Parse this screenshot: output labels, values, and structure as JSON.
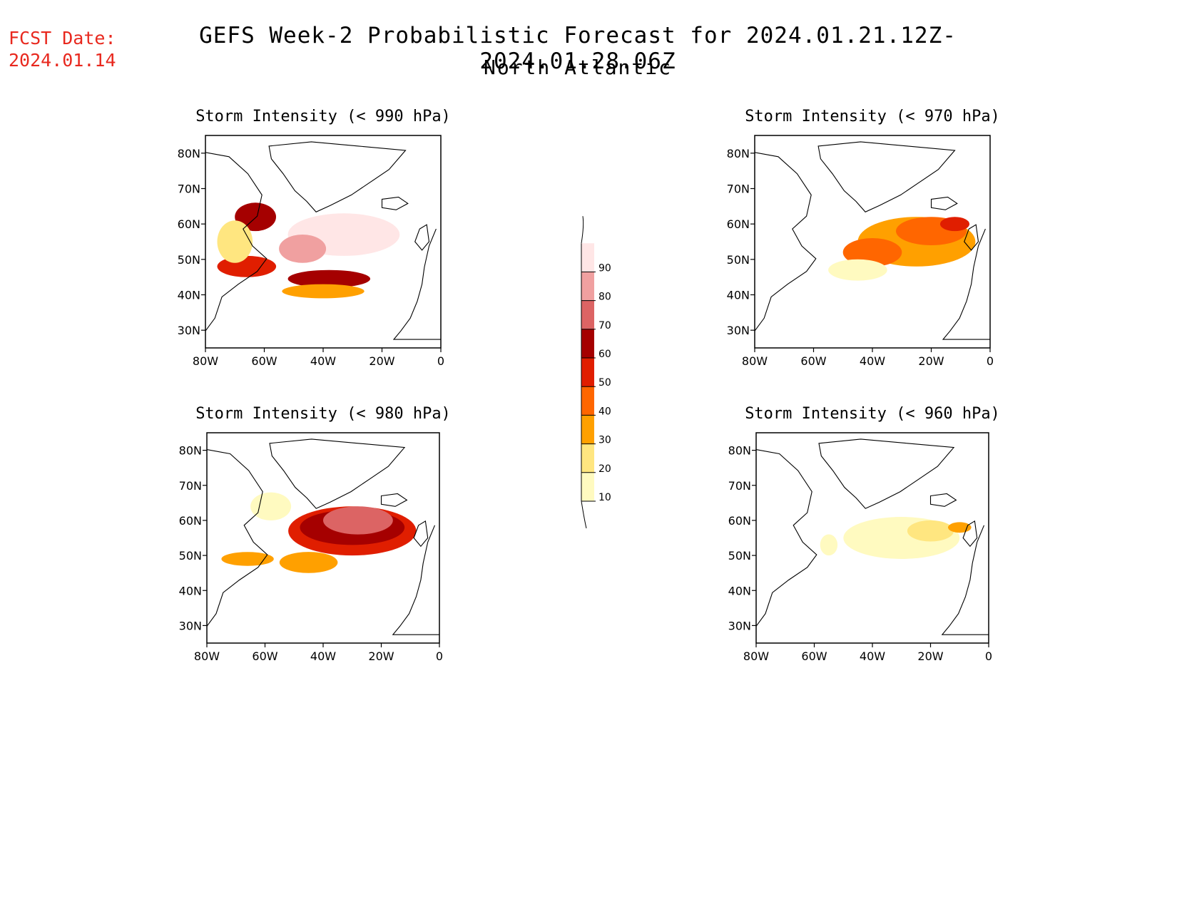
{
  "header": {
    "fcst_label": "FCST Date:",
    "fcst_date": "2024.01.14",
    "title": "GEFS Week-2 Probabilistic Forecast for 2024.01.21.12Z-2024.01.28.06Z",
    "subtitle": "North Atlantic"
  },
  "axes": {
    "lat_ticks": [
      "80N",
      "70N",
      "60N",
      "50N",
      "40N",
      "30N"
    ],
    "lon_ticks": [
      "80W",
      "60W",
      "40W",
      "20W",
      "0"
    ]
  },
  "colorbar": {
    "levels": [
      "10",
      "20",
      "30",
      "40",
      "50",
      "60",
      "70",
      "80",
      "90"
    ],
    "colors": [
      "#fffac0",
      "#ffe680",
      "#ffa000",
      "#ff6600",
      "#e01e00",
      "#a50000",
      "#dc6464",
      "#f0a0a0",
      "#ffe6e6"
    ]
  },
  "panels": [
    {
      "title": "Storm Intensity (< 990 hPa)",
      "blobs": [
        {
          "lon": -33,
          "lat": 57,
          "rlon": 19,
          "rlat": 6,
          "level": 9
        },
        {
          "lon": -47,
          "lat": 53,
          "rlon": 8,
          "rlat": 4,
          "level": 8
        },
        {
          "lon": -38,
          "lat": 44.5,
          "rlon": 14,
          "rlat": 2.5,
          "level": 6
        },
        {
          "lon": -63,
          "lat": 62,
          "rlon": 7,
          "rlat": 4,
          "level": 6
        },
        {
          "lon": -66,
          "lat": 48,
          "rlon": 10,
          "rlat": 3,
          "level": 5
        },
        {
          "lon": -70,
          "lat": 55,
          "rlon": 6,
          "rlat": 6,
          "level": 2
        },
        {
          "lon": -40,
          "lat": 41,
          "rlon": 14,
          "rlat": 2,
          "level": 3
        }
      ]
    },
    {
      "title": "Storm Intensity (< 970 hPa)",
      "blobs": [
        {
          "lon": -25,
          "lat": 55,
          "rlon": 20,
          "rlat": 7,
          "level": 3
        },
        {
          "lon": -20,
          "lat": 58,
          "rlon": 12,
          "rlat": 4,
          "level": 4
        },
        {
          "lon": -40,
          "lat": 52,
          "rlon": 10,
          "rlat": 4,
          "level": 4
        },
        {
          "lon": -12,
          "lat": 60,
          "rlon": 5,
          "rlat": 2,
          "level": 5
        },
        {
          "lon": -45,
          "lat": 47,
          "rlon": 10,
          "rlat": 3,
          "level": 1
        }
      ]
    },
    {
      "title": "Storm Intensity (< 980 hPa)",
      "blobs": [
        {
          "lon": -30,
          "lat": 57,
          "rlon": 22,
          "rlat": 7,
          "level": 5
        },
        {
          "lon": -30,
          "lat": 58,
          "rlon": 18,
          "rlat": 5,
          "level": 6
        },
        {
          "lon": -28,
          "lat": 60,
          "rlon": 12,
          "rlat": 4,
          "level": 7
        },
        {
          "lon": -45,
          "lat": 48,
          "rlon": 10,
          "rlat": 3,
          "level": 3
        },
        {
          "lon": -66,
          "lat": 49,
          "rlon": 9,
          "rlat": 2,
          "level": 3
        },
        {
          "lon": -58,
          "lat": 64,
          "rlon": 7,
          "rlat": 4,
          "level": 1
        }
      ]
    },
    {
      "title": "Storm Intensity (< 960 hPa)",
      "blobs": [
        {
          "lon": -30,
          "lat": 55,
          "rlon": 20,
          "rlat": 6,
          "level": 1
        },
        {
          "lon": -20,
          "lat": 57,
          "rlon": 8,
          "rlat": 3,
          "level": 2
        },
        {
          "lon": -10,
          "lat": 58,
          "rlon": 4,
          "rlat": 1.5,
          "level": 3
        },
        {
          "lon": -55,
          "lat": 53,
          "rlon": 3,
          "rlat": 3,
          "level": 1
        }
      ]
    }
  ]
}
